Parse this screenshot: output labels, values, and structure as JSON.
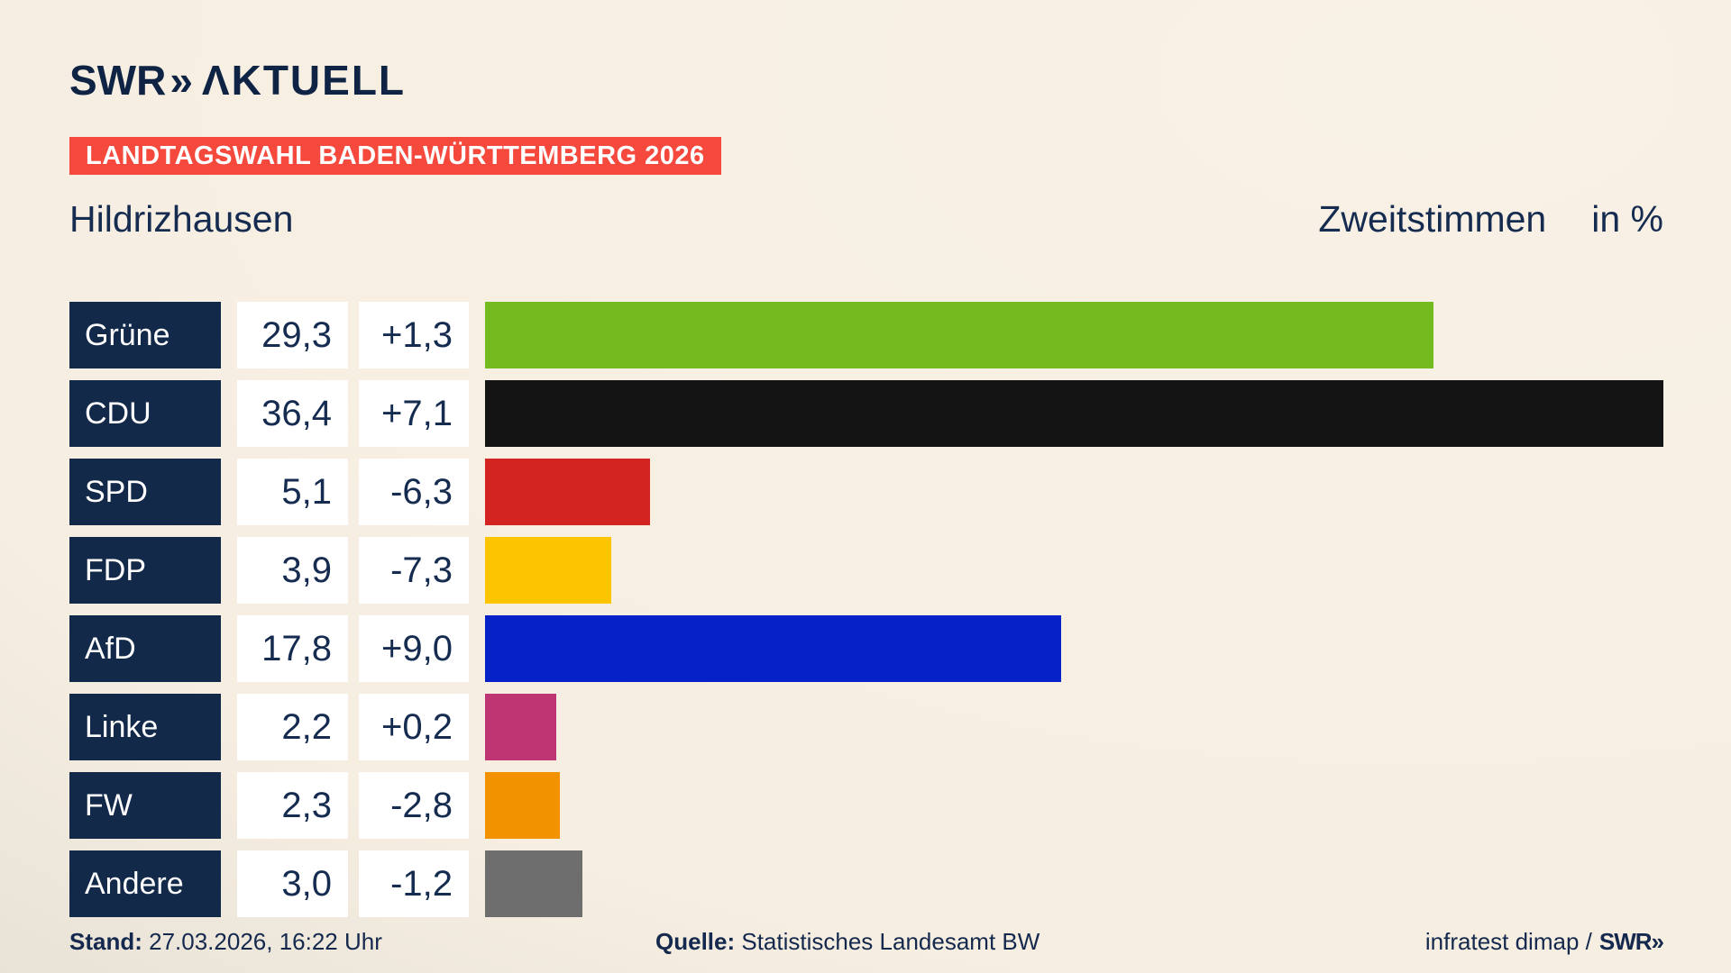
{
  "header": {
    "brand_swr": "SWR",
    "brand_chevrons": "»",
    "brand_aktuell": "ΛKTUELL",
    "banner": "LANDTAGSWAHL BADEN-WÜRTTEMBERG 2026",
    "title_left": "Hildrizhausen",
    "title_right": "Zweitstimmen",
    "title_right_unit": "in %"
  },
  "chart_data": {
    "type": "bar",
    "orientation": "horizontal",
    "title": "Landtagswahl Baden-Württemberg 2026 — Hildrizhausen, Zweitstimmen in %",
    "categories": [
      "Grüne",
      "CDU",
      "SPD",
      "FDP",
      "AfD",
      "Linke",
      "FW",
      "Andere"
    ],
    "values": [
      29.3,
      36.4,
      5.1,
      3.9,
      17.8,
      2.2,
      2.3,
      3.0
    ],
    "changes": [
      1.3,
      7.1,
      -6.3,
      -7.3,
      9.0,
      0.2,
      -2.8,
      -1.2
    ],
    "value_labels": [
      "29,3",
      "36,4",
      "5,1",
      "3,9",
      "17,8",
      "2,2",
      "2,3",
      "3,0"
    ],
    "change_labels": [
      "+1,3",
      "+7,1",
      "-6,3",
      "-7,3",
      "+9,0",
      "+0,2",
      "-2,8",
      "-1,2"
    ],
    "bar_colors": [
      "#74bb20",
      "#141414",
      "#d42421",
      "#fdc400",
      "#0522c8",
      "#bf3573",
      "#f39200",
      "#6e6e6e"
    ],
    "xlim": [
      0,
      36.4
    ],
    "unit": "%",
    "grid": false,
    "legend": false
  },
  "footer": {
    "stand_label": "Stand:",
    "stand_value": " 27.03.2026, 16:22 Uhr",
    "quelle_label": "Quelle:",
    "quelle_value": " Statistisches Landesamt BW",
    "credit_text": "infratest dimap /",
    "credit_brand": "SWR»"
  },
  "colors": {
    "background_light": "#f8f1e5",
    "background_shadow": "#c2bfba",
    "navy": "#13294a",
    "banner_red": "#f5493d",
    "box_white": "#ffffff"
  }
}
